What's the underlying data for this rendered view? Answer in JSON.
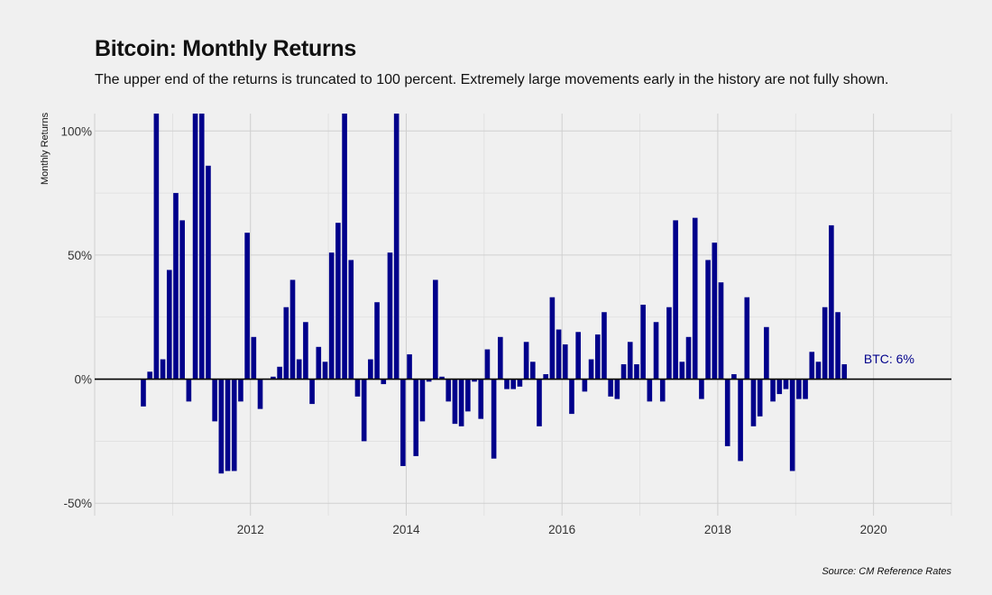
{
  "chart_data": {
    "type": "bar",
    "title": "Bitcoin: Monthly Returns",
    "subtitle": "The upper end of the returns is truncated to 100 percent. Extremely large movements early in the history are not fully shown.",
    "ylabel": "Monthly Returns",
    "caption": "Source: CM Reference Rates",
    "annotation": {
      "text": "BTC: 6%",
      "x": 2020.2,
      "y": 5
    },
    "xlim": [
      2010.0,
      2021.0
    ],
    "ylim": [
      -55,
      107
    ],
    "y_ticks": [
      -50,
      0,
      50,
      100
    ],
    "y_tick_labels": [
      "-50%",
      "0%",
      "50%",
      "100%"
    ],
    "x_ticks": [
      2012,
      2014,
      2016,
      2018,
      2020
    ],
    "x_tick_labels": [
      "2012",
      "2014",
      "2016",
      "2018",
      "2020"
    ],
    "grid": true,
    "bar_color": "#00008b",
    "series": [
      {
        "start": "2010-08",
        "values": [
          -11,
          3,
          107,
          8,
          44,
          75,
          64,
          -9,
          107,
          107,
          86,
          -17,
          -38,
          -37,
          -37,
          -9,
          59,
          17,
          -12,
          0,
          1,
          5,
          29,
          40,
          8,
          23,
          -10,
          13,
          7,
          51,
          63,
          107,
          48,
          -7,
          -25,
          8,
          31,
          -2,
          51,
          107,
          -35,
          10,
          -31,
          -17,
          -1,
          40,
          1,
          -9,
          -18,
          -19,
          -13,
          -1,
          -16,
          12,
          -32,
          17,
          -4,
          -4,
          -3,
          15,
          7,
          -19,
          2,
          33,
          20,
          14,
          -14,
          19,
          -5,
          8,
          18,
          27,
          -7,
          -8,
          6,
          15,
          6,
          30,
          -9,
          23,
          -9,
          29,
          64,
          7,
          17,
          65,
          -8,
          48,
          55,
          39,
          -27,
          2,
          -33,
          33,
          -19,
          -15,
          21,
          -9,
          -6,
          -4,
          -37,
          -8,
          -8,
          11,
          7,
          29,
          62,
          27,
          6
        ]
      }
    ]
  }
}
